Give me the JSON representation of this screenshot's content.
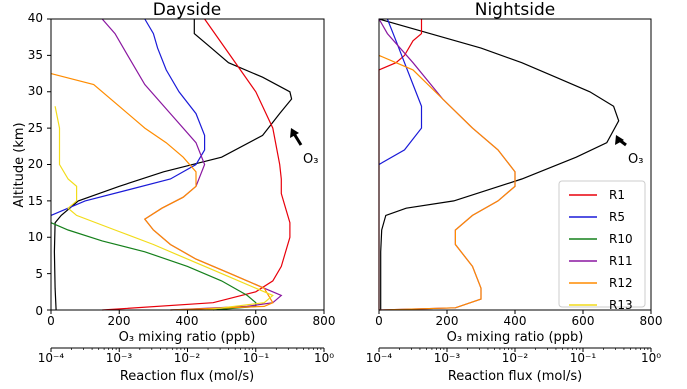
{
  "chart_data": [
    {
      "type": "line",
      "title": "Dayside",
      "ylabel": "Altitude (km)",
      "ylim": [
        0,
        40
      ],
      "yticks": [
        "0",
        "5",
        "10",
        "15",
        "20",
        "25",
        "30",
        "35",
        "40"
      ],
      "xaxes": {
        "primary": {
          "label": "O₃ mixing ratio (ppb)",
          "ticks": [
            "0",
            "200",
            "400",
            "600",
            "800"
          ],
          "xlim": [
            0,
            800
          ]
        },
        "secondary": {
          "label": "Reaction flux (mol/s)",
          "scale": "log",
          "xlim": [
            0.0001,
            1
          ],
          "ticks": [
            "10⁻⁴",
            "10⁻³",
            "10⁻²",
            "10⁻¹",
            "10⁰"
          ]
        }
      },
      "annotation": "O₃",
      "series": [
        {
          "name": "O₃",
          "axis": "primary",
          "color": "#000000",
          "points": [
            [
              15,
              0
            ],
            [
              12,
              3
            ],
            [
              10,
              8
            ],
            [
              12,
              12
            ],
            [
              30,
              13
            ],
            [
              80,
              15
            ],
            [
              200,
              17
            ],
            [
              330,
              19
            ],
            [
              500,
              21
            ],
            [
              620,
              24
            ],
            [
              670,
              27
            ],
            [
              705,
              29
            ],
            [
              700,
              30
            ],
            [
              620,
              32
            ],
            [
              520,
              34
            ],
            [
              470,
              36
            ],
            [
              420,
              38
            ],
            [
              420,
              40
            ]
          ]
        },
        {
          "name": "R1",
          "axis": "secondary",
          "color": "#e8000b",
          "points": [
            [
              0.000562,
              0
            ],
            [
              0.0237,
              1
            ],
            [
              0.1,
              2.5
            ],
            [
              0.178,
              4
            ],
            [
              0.237,
              6
            ],
            [
              0.274,
              8
            ],
            [
              0.316,
              10
            ],
            [
              0.316,
              12
            ],
            [
              0.274,
              14
            ],
            [
              0.237,
              16
            ],
            [
              0.237,
              18
            ],
            [
              0.224,
              20
            ],
            [
              0.178,
              25
            ],
            [
              0.1,
              30
            ],
            [
              0.0422,
              35
            ],
            [
              0.0178,
              40
            ]
          ]
        },
        {
          "name": "R5",
          "axis": "secondary",
          "color": "#1a1ad8",
          "points": [
            [
              0.0001,
              13
            ],
            [
              0.000316,
              15
            ],
            [
              0.00133,
              16.5
            ],
            [
              0.00562,
              18
            ],
            [
              0.0133,
              20
            ],
            [
              0.0178,
              22
            ],
            [
              0.0178,
              24
            ],
            [
              0.0133,
              27
            ],
            [
              0.0075,
              30
            ],
            [
              0.00487,
              33
            ],
            [
              0.00365,
              36
            ],
            [
              0.00316,
              38
            ],
            [
              0.00237,
              40
            ]
          ]
        },
        {
          "name": "R10",
          "axis": "secondary",
          "color": "#15801b",
          "points": [
            [
              0.0001,
              12
            ],
            [
              0.000178,
              11
            ],
            [
              0.000562,
              9.5
            ],
            [
              0.00237,
              8
            ],
            [
              0.01,
              6
            ],
            [
              0.0316,
              4
            ],
            [
              0.075,
              2
            ],
            [
              0.1,
              1
            ],
            [
              0.1,
              0.5
            ],
            [
              0.0237,
              0
            ]
          ]
        },
        {
          "name": "R11",
          "axis": "secondary",
          "color": "#8a17a0",
          "points": [
            [
              0.00562,
              0
            ],
            [
              0.075,
              0.5
            ],
            [
              0.178,
              1
            ],
            [
              0.237,
              2
            ],
            [
              0.133,
              3
            ],
            [
              0.0422,
              5
            ],
            [
              0.0133,
              7
            ],
            [
              0.00562,
              9
            ],
            [
              0.00316,
              11
            ],
            [
              0.00237,
              12.5
            ],
            [
              0.00422,
              14
            ],
            [
              0.00865,
              15.5
            ],
            [
              0.0133,
              17
            ],
            [
              0.0178,
              20
            ],
            [
              0.0133,
              23
            ],
            [
              0.00562,
              27
            ],
            [
              0.00237,
              31
            ],
            [
              0.00133,
              35
            ],
            [
              0.000865,
              38
            ],
            [
              0.000562,
              40
            ]
          ]
        },
        {
          "name": "R12",
          "axis": "secondary",
          "color": "#ff8c00",
          "points": [
            [
              0.00562,
              0
            ],
            [
              0.133,
              0.5
            ],
            [
              0.178,
              1
            ],
            [
              0.133,
              3
            ],
            [
              0.0422,
              5
            ],
            [
              0.0133,
              7
            ],
            [
              0.00562,
              9
            ],
            [
              0.00316,
              11
            ],
            [
              0.00237,
              12.5
            ],
            [
              0.00422,
              14
            ],
            [
              0.00865,
              15.5
            ],
            [
              0.0133,
              17
            ],
            [
              0.0133,
              19
            ],
            [
              0.00865,
              21
            ],
            [
              0.00487,
              23
            ],
            [
              0.00237,
              25
            ],
            [
              0.001,
              28
            ],
            [
              0.000422,
              31
            ],
            [
              0.0001,
              32.5
            ]
          ]
        },
        {
          "name": "R13",
          "axis": "secondary",
          "color": "#f2dc1a",
          "points": [
            [
              0.0178,
              0
            ],
            [
              0.133,
              1
            ],
            [
              0.178,
              2
            ],
            [
              0.1,
              3
            ],
            [
              0.0316,
              5
            ],
            [
              0.01,
              7
            ],
            [
              0.00316,
              9
            ],
            [
              0.000865,
              11
            ],
            [
              0.000237,
              13
            ],
            [
              0.000178,
              14
            ],
            [
              0.000237,
              15
            ],
            [
              0.000237,
              17
            ],
            [
              0.000178,
              18
            ],
            [
              0.000133,
              20
            ],
            [
              0.000133,
              22
            ],
            [
              0.000133,
              25
            ],
            [
              0.000115,
              28
            ]
          ]
        }
      ]
    },
    {
      "type": "line",
      "title": "Nightside",
      "ylim": [
        0,
        40
      ],
      "xaxes": {
        "primary": {
          "label": "O₃ mixing ratio (ppb)",
          "ticks": [
            "0",
            "200",
            "400",
            "600",
            "800"
          ],
          "xlim": [
            0,
            800
          ]
        },
        "secondary": {
          "label": "Reaction flux (mol/s)",
          "scale": "log",
          "xlim": [
            0.0001,
            1
          ],
          "ticks": [
            "10⁻⁴",
            "10⁻³",
            "10⁻²",
            "10⁻¹",
            "10⁰"
          ]
        }
      },
      "annotation": "O₃",
      "series": [
        {
          "name": "O₃",
          "axis": "primary",
          "color": "#000000",
          "points": [
            [
              5,
              0
            ],
            [
              5,
              3
            ],
            [
              5,
              8
            ],
            [
              8,
              11
            ],
            [
              20,
              13
            ],
            [
              80,
              14
            ],
            [
              220,
              15
            ],
            [
              420,
              18
            ],
            [
              580,
              21
            ],
            [
              670,
              23
            ],
            [
              705,
              26
            ],
            [
              690,
              28
            ],
            [
              620,
              30
            ],
            [
              520,
              32
            ],
            [
              420,
              34
            ],
            [
              300,
              36
            ],
            [
              150,
              38
            ],
            [
              0,
              40
            ]
          ]
        },
        {
          "name": "R1",
          "axis": "secondary",
          "color": "#e8000b",
          "points": [
            [
              0.0001,
              0
            ],
            [
              0.0001,
              33
            ],
            [
              0.000178,
              34
            ],
            [
              0.000237,
              35
            ],
            [
              0.000316,
              37
            ],
            [
              0.000422,
              38
            ],
            [
              0.000422,
              40
            ]
          ]
        },
        {
          "name": "R5",
          "axis": "secondary",
          "color": "#1a1ad8",
          "points": [
            [
              0.0001,
              20
            ],
            [
              0.000237,
              22
            ],
            [
              0.000422,
              25
            ],
            [
              0.000422,
              28
            ],
            [
              0.000316,
              31
            ],
            [
              0.000237,
              34
            ],
            [
              0.000178,
              37
            ],
            [
              0.000133,
              40
            ]
          ]
        },
        {
          "name": "R10",
          "axis": "secondary",
          "color": "#15801b",
          "points": []
        },
        {
          "name": "R11",
          "axis": "secondary",
          "color": "#8a17a0",
          "points": [
            [
              0.0001,
              0
            ],
            [
              0.00133,
              0.3
            ],
            [
              0.00316,
              1.5
            ],
            [
              0.00316,
              3
            ],
            [
              0.00237,
              6
            ],
            [
              0.00133,
              9
            ],
            [
              0.00133,
              11
            ],
            [
              0.00237,
              13
            ],
            [
              0.00562,
              15
            ],
            [
              0.01,
              17
            ],
            [
              0.01,
              19
            ],
            [
              0.00562,
              22
            ],
            [
              0.00237,
              25
            ],
            [
              0.000865,
              29
            ],
            [
              0.000316,
              34
            ],
            [
              0.000133,
              38
            ],
            [
              0.0001,
              40
            ]
          ]
        },
        {
          "name": "R12",
          "axis": "secondary",
          "color": "#ff8c00",
          "points": [
            [
              0.0001,
              0
            ],
            [
              0.00133,
              0.3
            ],
            [
              0.00316,
              1.5
            ],
            [
              0.00316,
              3
            ],
            [
              0.00237,
              6
            ],
            [
              0.00133,
              9
            ],
            [
              0.00133,
              11
            ],
            [
              0.00237,
              13
            ],
            [
              0.00562,
              15
            ],
            [
              0.01,
              17
            ],
            [
              0.01,
              19
            ],
            [
              0.00562,
              22
            ],
            [
              0.00237,
              25
            ],
            [
              0.000865,
              29
            ],
            [
              0.000316,
              33
            ],
            [
              0.0001,
              35
            ]
          ]
        },
        {
          "name": "R13",
          "axis": "secondary",
          "color": "#f2dc1a",
          "points": []
        }
      ]
    }
  ],
  "legend": {
    "placement": "lower-right of Nightside panel",
    "entries": [
      {
        "label": "R1",
        "color": "#e8000b"
      },
      {
        "label": "R5",
        "color": "#1a1ad8"
      },
      {
        "label": "R10",
        "color": "#15801b"
      },
      {
        "label": "R11",
        "color": "#8a17a0"
      },
      {
        "label": "R12",
        "color": "#ff8c00"
      },
      {
        "label": "R13",
        "color": "#f2dc1a"
      }
    ]
  }
}
